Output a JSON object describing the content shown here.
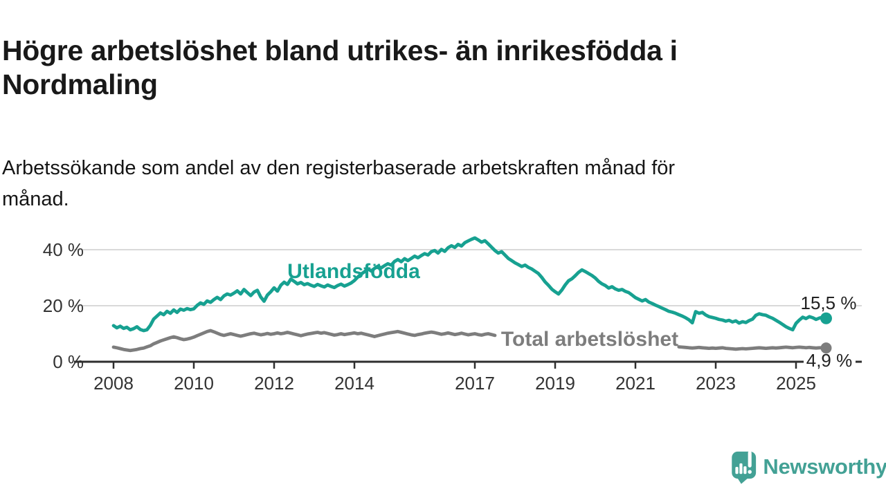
{
  "header": {
    "title": "Högre arbetslöshet bland utrikes- än inrikesfödda i\nNordmaling",
    "subtitle": "Arbetssökande som andel av den registerbaserade arbetskraften månad för\nmånad."
  },
  "footer": {
    "brand": "Newsworthy"
  },
  "colors": {
    "accent_teal": "#17A191",
    "line_gray": "#7d7d7d",
    "grid": "#d9d9d9",
    "axis": "#2e2e2e",
    "tick_text": "#333333",
    "value_text": "#222222",
    "logo_teal": "#43A195"
  },
  "chart_data": {
    "type": "line",
    "title": "Högre arbetslöshet bland utrikes- än inrikesfödda i Nordmaling",
    "subtitle": "Arbetssökande som andel av den registerbaserade arbetskraften månad för månad.",
    "x_unit": "month",
    "x_start_year": 2008,
    "x_end": "2025-10",
    "x_ticks": [
      2008,
      2010,
      2012,
      2014,
      2017,
      2019,
      2021,
      2023,
      2025
    ],
    "y_ticks": [
      {
        "v": 0,
        "label": "0 %"
      },
      {
        "v": 20,
        "label": "20 %"
      },
      {
        "v": 40,
        "label": "40 %"
      }
    ],
    "ylim": [
      0,
      47
    ],
    "grid": "horizontal",
    "legend_position": "inline-labels",
    "series": [
      {
        "name": "Utlandsfödda",
        "color": "#17A191",
        "end_label": "15,5 %",
        "end_value": 15.5,
        "values": [
          12.9,
          12.1,
          12.7,
          11.9,
          12.3,
          11.4,
          11.8,
          12.5,
          11.5,
          11.1,
          11.4,
          13.0,
          15.2,
          16.3,
          17.4,
          16.8,
          18.0,
          17.3,
          18.5,
          17.6,
          18.8,
          18.4,
          19.0,
          18.6,
          18.9,
          20.1,
          21.0,
          20.5,
          21.7,
          21.2,
          22.2,
          23.0,
          22.2,
          23.5,
          24.2,
          23.8,
          24.5,
          25.3,
          24.2,
          25.8,
          24.7,
          23.6,
          24.9,
          25.5,
          23.1,
          21.6,
          23.8,
          25.0,
          26.4,
          25.2,
          27.3,
          28.4,
          27.6,
          29.5,
          28.7,
          27.8,
          28.3,
          27.5,
          27.9,
          27.3,
          26.9,
          27.6,
          27.1,
          26.7,
          27.4,
          26.9,
          26.5,
          27.2,
          27.7,
          27.0,
          27.5,
          28.1,
          29.0,
          30.2,
          31.3,
          32.1,
          33.2,
          32.4,
          33.3,
          34.1,
          33.5,
          34.3,
          35.0,
          34.5,
          35.8,
          36.5,
          35.7,
          36.8,
          36.1,
          36.9,
          37.7,
          37.1,
          37.9,
          38.6,
          38.1,
          39.3,
          39.7,
          38.8,
          40.1,
          39.4,
          40.7,
          41.4,
          40.8,
          41.9,
          41.3,
          42.5,
          43.1,
          43.7,
          44.2,
          43.5,
          42.7,
          43.2,
          42.1,
          40.9,
          39.7,
          38.8,
          39.3,
          38.1,
          36.9,
          36.1,
          35.3,
          34.7,
          34.0,
          34.5,
          33.7,
          33.1,
          32.3,
          31.5,
          30.1,
          28.5,
          27.3,
          25.9,
          25.0,
          24.2,
          25.6,
          27.4,
          28.9,
          29.6,
          30.7,
          31.9,
          32.8,
          32.2,
          31.5,
          30.8,
          29.9,
          28.7,
          27.8,
          27.2,
          26.3,
          26.8,
          26.0,
          25.5,
          25.8,
          25.1,
          24.7,
          23.8,
          22.9,
          22.3,
          21.7,
          22.2,
          21.3,
          20.8,
          20.2,
          19.7,
          19.1,
          18.6,
          18.0,
          17.7,
          17.3,
          16.8,
          16.3,
          15.7,
          15.0,
          13.9,
          17.9,
          17.3,
          17.6,
          16.7,
          16.1,
          15.8,
          15.5,
          15.1,
          14.9,
          14.5,
          14.8,
          14.2,
          14.6,
          13.8,
          14.3,
          14.0,
          14.7,
          15.2,
          16.6,
          17.1,
          16.8,
          16.6,
          16.0,
          15.5,
          14.8,
          14.1,
          13.3,
          12.5,
          11.9,
          11.4,
          13.7,
          14.9,
          15.9,
          15.4,
          16.1,
          15.7,
          15.1,
          15.6,
          15.9,
          15.5
        ]
      },
      {
        "name": "Total arbetslöshet",
        "color": "#7d7d7d",
        "end_label": "4,9 %",
        "end_value": 4.9,
        "label_gap_months": [
          "2017-07",
          "2022-02"
        ],
        "values": [
          5.2,
          5.0,
          4.7,
          4.4,
          4.2,
          4.0,
          4.2,
          4.4,
          4.7,
          4.9,
          5.3,
          5.7,
          6.4,
          6.9,
          7.4,
          7.8,
          8.2,
          8.6,
          8.9,
          8.6,
          8.2,
          7.9,
          8.1,
          8.4,
          8.8,
          9.3,
          9.8,
          10.3,
          10.8,
          11.1,
          10.7,
          10.2,
          9.7,
          9.4,
          9.7,
          10.0,
          9.7,
          9.4,
          9.1,
          9.4,
          9.7,
          10.0,
          10.2,
          9.9,
          9.6,
          9.8,
          10.1,
          9.8,
          10.0,
          10.3,
          10.0,
          10.2,
          10.5,
          10.2,
          9.9,
          9.6,
          9.3,
          9.6,
          9.9,
          10.1,
          10.3,
          10.5,
          10.2,
          10.4,
          10.1,
          9.8,
          9.5,
          9.7,
          10.0,
          9.7,
          9.9,
          10.1,
          10.3,
          10.0,
          10.2,
          9.9,
          9.6,
          9.3,
          9.0,
          9.3,
          9.6,
          9.9,
          10.2,
          10.4,
          10.6,
          10.8,
          10.5,
          10.2,
          9.9,
          9.6,
          9.4,
          9.7,
          9.9,
          10.2,
          10.4,
          10.6,
          10.4,
          10.1,
          9.8,
          10.0,
          10.3,
          10.0,
          9.7,
          9.9,
          10.2,
          9.9,
          9.6,
          9.8,
          10.0,
          9.7,
          9.5,
          9.8,
          10.0,
          9.7,
          9.4,
          9.2,
          9.0,
          8.8,
          8.6,
          8.5,
          8.4,
          8.3,
          8.2,
          8.4,
          8.6,
          8.8,
          8.6,
          8.4,
          8.2,
          8.0,
          7.9,
          8.0,
          8.2,
          8.4,
          8.6,
          8.8,
          9.0,
          8.8,
          8.6,
          8.4,
          8.6,
          8.8,
          8.6,
          8.4,
          8.6,
          8.8,
          9.0,
          9.2,
          9.0,
          8.8,
          8.6,
          8.4,
          8.2,
          8.0,
          7.8,
          7.6,
          7.4,
          7.2,
          7.0,
          6.8,
          6.6,
          6.4,
          6.2,
          6.0,
          5.9,
          5.7,
          5.6,
          5.5,
          5.4,
          5.3,
          5.2,
          5.1,
          5.0,
          4.9,
          5.0,
          5.1,
          5.0,
          4.9,
          4.8,
          4.9,
          4.8,
          4.9,
          5.0,
          4.8,
          4.7,
          4.6,
          4.5,
          4.6,
          4.7,
          4.6,
          4.7,
          4.8,
          4.9,
          5.0,
          4.9,
          4.8,
          4.9,
          5.0,
          4.9,
          5.0,
          5.1,
          5.2,
          5.1,
          5.0,
          5.1,
          5.2,
          5.1,
          5.0,
          5.1,
          5.0,
          4.9,
          5.0,
          5.0,
          4.9
        ]
      }
    ]
  }
}
